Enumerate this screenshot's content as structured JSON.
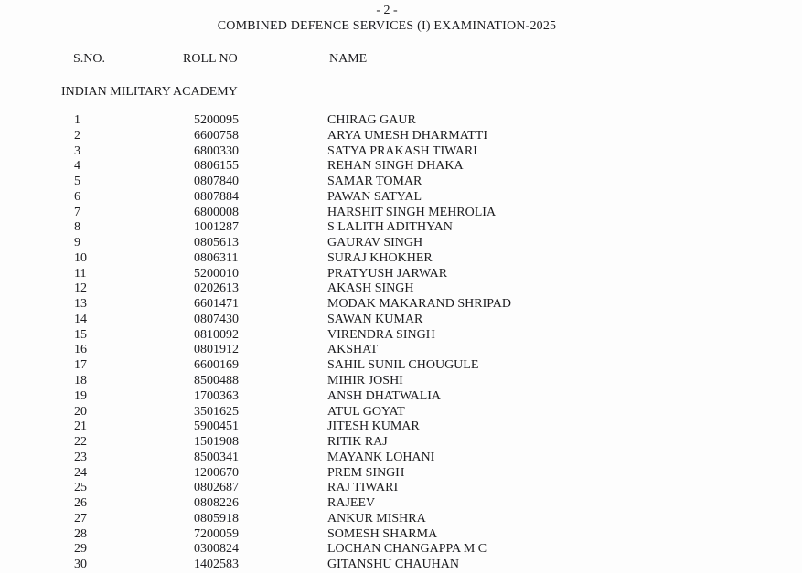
{
  "page": {
    "page_number": "- 2 -",
    "title": "COMBINED DEFENCE SERVICES (I) EXAMINATION-2025",
    "section_heading": "INDIAN MILITARY ACADEMY"
  },
  "colors": {
    "text": "#1b1b1e",
    "background": "#fdfdfd"
  },
  "table": {
    "columns": [
      "S.NO.",
      "ROLL NO",
      "NAME"
    ],
    "rows": [
      {
        "sno": "1",
        "roll": "5200095",
        "name": "CHIRAG GAUR"
      },
      {
        "sno": "2",
        "roll": "6600758",
        "name": "ARYA UMESH DHARMATTI"
      },
      {
        "sno": "3",
        "roll": "6800330",
        "name": "SATYA PRAKASH TIWARI"
      },
      {
        "sno": "4",
        "roll": "0806155",
        "name": "REHAN SINGH DHAKA"
      },
      {
        "sno": "5",
        "roll": "0807840",
        "name": "SAMAR TOMAR"
      },
      {
        "sno": "6",
        "roll": "0807884",
        "name": "PAWAN SATYAL"
      },
      {
        "sno": "7",
        "roll": "6800008",
        "name": "HARSHIT SINGH MEHROLIA"
      },
      {
        "sno": "8",
        "roll": "1001287",
        "name": "S LALITH ADITHYAN"
      },
      {
        "sno": "9",
        "roll": "0805613",
        "name": "GAURAV SINGH"
      },
      {
        "sno": "10",
        "roll": "0806311",
        "name": "SURAJ KHOKHER"
      },
      {
        "sno": "11",
        "roll": "5200010",
        "name": "PRATYUSH JARWAR"
      },
      {
        "sno": "12",
        "roll": "0202613",
        "name": "AKASH SINGH"
      },
      {
        "sno": "13",
        "roll": "6601471",
        "name": "MODAK MAKARAND SHRIPAD"
      },
      {
        "sno": "14",
        "roll": "0807430",
        "name": "SAWAN KUMAR"
      },
      {
        "sno": "15",
        "roll": "0810092",
        "name": "VIRENDRA SINGH"
      },
      {
        "sno": "16",
        "roll": "0801912",
        "name": "AKSHAT"
      },
      {
        "sno": "17",
        "roll": "6600169",
        "name": "SAHIL SUNIL CHOUGULE"
      },
      {
        "sno": "18",
        "roll": "8500488",
        "name": "MIHIR JOSHI"
      },
      {
        "sno": "19",
        "roll": "1700363",
        "name": "ANSH DHATWALIA"
      },
      {
        "sno": "20",
        "roll": "3501625",
        "name": "ATUL GOYAT"
      },
      {
        "sno": "21",
        "roll": "5900451",
        "name": "JITESH KUMAR"
      },
      {
        "sno": "22",
        "roll": "1501908",
        "name": "RITIK RAJ"
      },
      {
        "sno": "23",
        "roll": "8500341",
        "name": "MAYANK LOHANI"
      },
      {
        "sno": "24",
        "roll": "1200670",
        "name": "PREM SINGH"
      },
      {
        "sno": "25",
        "roll": "0802687",
        "name": "RAJ TIWARI"
      },
      {
        "sno": "26",
        "roll": "0808226",
        "name": "RAJEEV"
      },
      {
        "sno": "27",
        "roll": "0805918",
        "name": "ANKUR MISHRA"
      },
      {
        "sno": "28",
        "roll": "7200059",
        "name": "SOMESH SHARMA"
      },
      {
        "sno": "29",
        "roll": "0300824",
        "name": "LOCHAN CHANGAPPA M C"
      },
      {
        "sno": "30",
        "roll": "1402583",
        "name": "GITANSHU CHAUHAN"
      }
    ]
  }
}
